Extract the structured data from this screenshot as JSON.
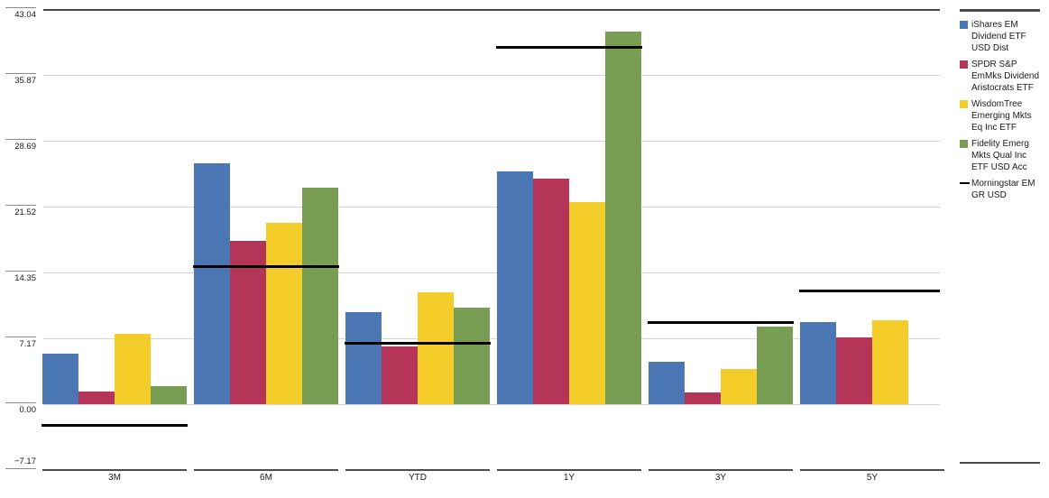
{
  "chart_data": {
    "type": "bar",
    "title": "",
    "categories": [
      "3M",
      "6M",
      "YTD",
      "1Y",
      "3Y",
      "5Y"
    ],
    "series": [
      {
        "name": "iShares EM Dividend ETF USD Dist",
        "color": "#4a77b4",
        "values": [
          5.5,
          26.2,
          10.0,
          25.4,
          4.6,
          8.9
        ]
      },
      {
        "name": "SPDR S&P EmMks Dividend Aristocrats ETF",
        "color": "#b43558",
        "values": [
          1.4,
          17.8,
          6.3,
          24.6,
          1.3,
          7.3
        ]
      },
      {
        "name": "WisdomTree Emerging Mkts Eq Inc ETF",
        "color": "#f4cc2a",
        "values": [
          7.7,
          19.8,
          12.2,
          22.0,
          3.8,
          9.1
        ]
      },
      {
        "name": "Fidelity Emerg Mkts Qual Inc ETF USD Acc",
        "color": "#789e54",
        "values": [
          2.0,
          23.6,
          10.5,
          40.6,
          8.5,
          null
        ]
      }
    ],
    "benchmark_series": {
      "name": "Morningstar EM GR USD",
      "color": "#000000",
      "style": "line",
      "values": [
        -2.3,
        15.0,
        6.7,
        38.9,
        8.9,
        12.4
      ]
    },
    "y_ticks": [
      43.04,
      35.87,
      28.69,
      21.52,
      14.35,
      7.17,
      0,
      -7.17
    ],
    "y_tick_labels": [
      "43.04",
      "35.87",
      "28.69",
      "21.52",
      "14.35",
      "7.17",
      "0.00",
      "−7.17"
    ],
    "ylim": [
      -7.17,
      43.04
    ],
    "grid": true,
    "legend_position": "right"
  },
  "colors": {
    "gridline": "#d4d4d4",
    "top_border": "#454545",
    "category_axis": "#4d4d4d",
    "tick": "#8c8c8c",
    "text": "#1a1a1a"
  }
}
